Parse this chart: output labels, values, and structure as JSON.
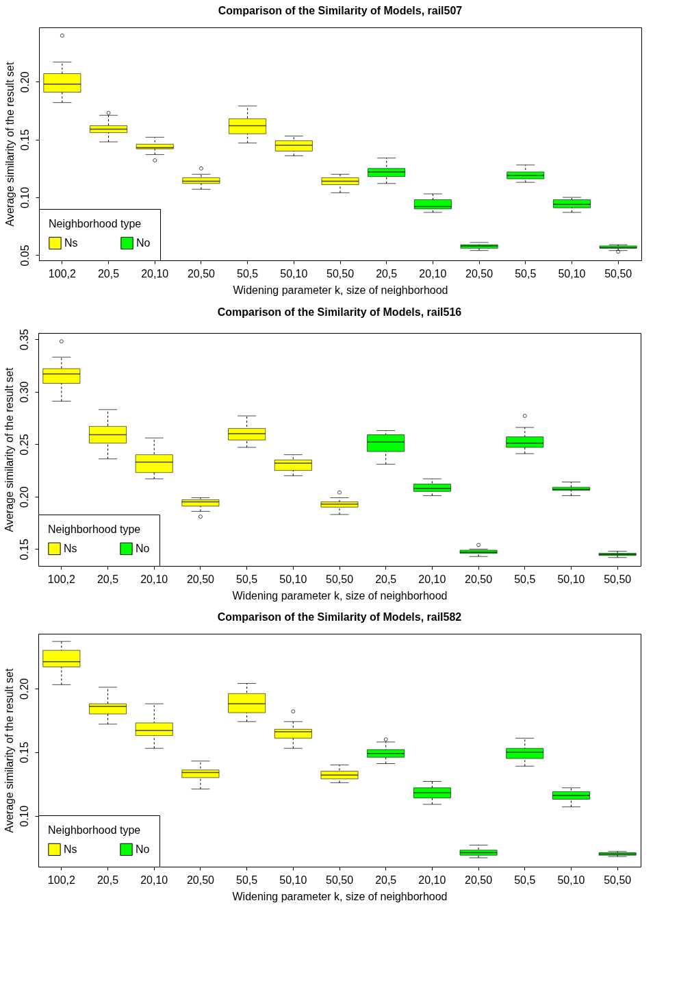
{
  "chart_data": [
    {
      "type": "box",
      "title": "Comparison of the Similarity of Models, rail507",
      "xlabel": "Widening parameter k, size of neighborhood",
      "ylabel": "Average similarity of the result set",
      "legend_title": "Neighborhood type",
      "legend": "bottom left",
      "grid": false,
      "categories": [
        "100,2",
        "20,5",
        "20,10",
        "20,50",
        "50,5",
        "50,10",
        "50,50",
        "20,5",
        "20,10",
        "20,50",
        "50,5",
        "50,10",
        "50,50"
      ],
      "ylim": [
        0.0455,
        0.247
      ],
      "yticks": [
        {
          "value": 0.05,
          "label": "0.05"
        },
        {
          "value": 0.1,
          "label": "0.10"
        },
        {
          "value": 0.15,
          "label": "0.15"
        },
        {
          "value": 0.2,
          "label": "0.20"
        }
      ],
      "series": [
        {
          "name": "Ns",
          "color": "#ffff00",
          "boxes": [
            {
              "low": 0.182,
              "q1": 0.191,
              "median": 0.198,
              "q3": 0.207,
              "high": 0.217,
              "outliers": [
                0.24
              ]
            },
            {
              "low": 0.148,
              "q1": 0.156,
              "median": 0.159,
              "q3": 0.162,
              "high": 0.171,
              "outliers": [
                0.173
              ]
            },
            {
              "low": 0.137,
              "q1": 0.142,
              "median": 0.143,
              "q3": 0.146,
              "high": 0.152,
              "outliers": [
                0.132
              ]
            },
            {
              "low": 0.107,
              "q1": 0.112,
              "median": 0.114,
              "q3": 0.117,
              "high": 0.12,
              "outliers": [
                0.125
              ]
            },
            {
              "low": 0.147,
              "q1": 0.155,
              "median": 0.162,
              "q3": 0.168,
              "high": 0.179
            },
            {
              "low": 0.136,
              "q1": 0.14,
              "median": 0.145,
              "q3": 0.149,
              "high": 0.153
            },
            {
              "low": 0.104,
              "q1": 0.111,
              "median": 0.114,
              "q3": 0.117,
              "high": 0.12
            },
            null,
            null,
            null,
            null,
            null,
            null
          ]
        },
        {
          "name": "No",
          "color": "#00ff00",
          "boxes": [
            null,
            null,
            null,
            null,
            null,
            null,
            null,
            {
              "low": 0.112,
              "q1": 0.118,
              "median": 0.122,
              "q3": 0.125,
              "high": 0.134
            },
            {
              "low": 0.087,
              "q1": 0.09,
              "median": 0.092,
              "q3": 0.098,
              "high": 0.103
            },
            {
              "low": 0.054,
              "q1": 0.056,
              "median": 0.058,
              "q3": 0.059,
              "high": 0.061
            },
            {
              "low": 0.113,
              "q1": 0.116,
              "median": 0.119,
              "q3": 0.122,
              "high": 0.128
            },
            {
              "low": 0.087,
              "q1": 0.091,
              "median": 0.094,
              "q3": 0.098,
              "high": 0.1
            },
            {
              "low": 0.054,
              "q1": 0.056,
              "median": 0.0565,
              "q3": 0.058,
              "high": 0.059,
              "outliers": [
                0.053
              ]
            }
          ]
        }
      ]
    },
    {
      "type": "box",
      "title": "Comparison of the Similarity of Models, rail516",
      "xlabel": "Widening parameter k, size of neighborhood",
      "ylabel": "Average similarity of the result set",
      "legend_title": "Neighborhood type",
      "legend": "bottom left",
      "grid": false,
      "categories": [
        "100,2",
        "20,5",
        "20,10",
        "20,50",
        "50,5",
        "50,10",
        "50,50",
        "20,5",
        "20,10",
        "20,50",
        "50,5",
        "50,10",
        "50,50"
      ],
      "ylim": [
        0.134,
        0.356
      ],
      "yticks": [
        {
          "value": 0.15,
          "label": "0.15"
        },
        {
          "value": 0.2,
          "label": "0.20"
        },
        {
          "value": 0.25,
          "label": "0.25"
        },
        {
          "value": 0.3,
          "label": "0.30"
        },
        {
          "value": 0.35,
          "label": "0.35"
        }
      ],
      "series": [
        {
          "name": "Ns",
          "color": "#ffff00",
          "boxes": [
            {
              "low": 0.291,
              "q1": 0.308,
              "median": 0.317,
              "q3": 0.322,
              "high": 0.333,
              "outliers": [
                0.348
              ]
            },
            {
              "low": 0.236,
              "q1": 0.251,
              "median": 0.259,
              "q3": 0.267,
              "high": 0.283
            },
            {
              "low": 0.217,
              "q1": 0.223,
              "median": 0.233,
              "q3": 0.24,
              "high": 0.256
            },
            {
              "low": 0.186,
              "q1": 0.191,
              "median": 0.195,
              "q3": 0.197,
              "high": 0.199,
              "outliers": [
                0.181
              ]
            },
            {
              "low": 0.247,
              "q1": 0.254,
              "median": 0.26,
              "q3": 0.265,
              "high": 0.277
            },
            {
              "low": 0.22,
              "q1": 0.225,
              "median": 0.232,
              "q3": 0.235,
              "high": 0.24
            },
            {
              "low": 0.183,
              "q1": 0.19,
              "median": 0.193,
              "q3": 0.195,
              "high": 0.199,
              "outliers": [
                0.204
              ]
            },
            null,
            null,
            null,
            null,
            null,
            null
          ]
        },
        {
          "name": "No",
          "color": "#00ff00",
          "boxes": [
            null,
            null,
            null,
            null,
            null,
            null,
            null,
            {
              "low": 0.231,
              "q1": 0.243,
              "median": 0.252,
              "q3": 0.259,
              "high": 0.263
            },
            {
              "low": 0.201,
              "q1": 0.205,
              "median": 0.208,
              "q3": 0.212,
              "high": 0.217
            },
            {
              "low": 0.143,
              "q1": 0.146,
              "median": 0.147,
              "q3": 0.149,
              "high": 0.15,
              "outliers": [
                0.154
              ]
            },
            {
              "low": 0.241,
              "q1": 0.247,
              "median": 0.251,
              "q3": 0.257,
              "high": 0.266,
              "outliers": [
                0.277
              ]
            },
            {
              "low": 0.201,
              "q1": 0.206,
              "median": 0.207,
              "q3": 0.209,
              "high": 0.214
            },
            {
              "low": 0.142,
              "q1": 0.144,
              "median": 0.145,
              "q3": 0.146,
              "high": 0.148
            }
          ]
        }
      ]
    },
    {
      "type": "box",
      "title": "Comparison of the Similarity of Models, rail582",
      "xlabel": "Widening parameter k, size of neighborhood",
      "ylabel": "Average similarity of the result set",
      "legend_title": "Neighborhood type",
      "legend": "bottom left",
      "grid": false,
      "categories": [
        "100,2",
        "20,5",
        "20,10",
        "20,50",
        "50,5",
        "50,10",
        "50,50",
        "20,5",
        "20,10",
        "20,50",
        "50,5",
        "50,10",
        "50,50"
      ],
      "ylim": [
        0.06,
        0.243
      ],
      "yticks": [
        {
          "value": 0.1,
          "label": "0.10"
        },
        {
          "value": 0.15,
          "label": "0.15"
        },
        {
          "value": 0.2,
          "label": "0.20"
        }
      ],
      "series": [
        {
          "name": "Ns",
          "color": "#ffff00",
          "boxes": [
            {
              "low": 0.203,
              "q1": 0.217,
              "median": 0.221,
              "q3": 0.23,
              "high": 0.237
            },
            {
              "low": 0.172,
              "q1": 0.18,
              "median": 0.186,
              "q3": 0.188,
              "high": 0.201
            },
            {
              "low": 0.153,
              "q1": 0.163,
              "median": 0.167,
              "q3": 0.173,
              "high": 0.188
            },
            {
              "low": 0.121,
              "q1": 0.13,
              "median": 0.134,
              "q3": 0.136,
              "high": 0.143
            },
            {
              "low": 0.174,
              "q1": 0.181,
              "median": 0.188,
              "q3": 0.196,
              "high": 0.204
            },
            {
              "low": 0.153,
              "q1": 0.161,
              "median": 0.166,
              "q3": 0.168,
              "high": 0.174,
              "outliers": [
                0.182
              ]
            },
            {
              "low": 0.126,
              "q1": 0.129,
              "median": 0.132,
              "q3": 0.135,
              "high": 0.14
            },
            null,
            null,
            null,
            null,
            null,
            null
          ]
        },
        {
          "name": "No",
          "color": "#00ff00",
          "boxes": [
            null,
            null,
            null,
            null,
            null,
            null,
            null,
            {
              "low": 0.141,
              "q1": 0.146,
              "median": 0.149,
              "q3": 0.152,
              "high": 0.158,
              "outliers": [
                0.16
              ]
            },
            {
              "low": 0.109,
              "q1": 0.114,
              "median": 0.118,
              "q3": 0.122,
              "high": 0.127
            },
            {
              "low": 0.067,
              "q1": 0.069,
              "median": 0.071,
              "q3": 0.073,
              "high": 0.077
            },
            {
              "low": 0.139,
              "q1": 0.145,
              "median": 0.15,
              "q3": 0.153,
              "high": 0.161
            },
            {
              "low": 0.107,
              "q1": 0.113,
              "median": 0.116,
              "q3": 0.119,
              "high": 0.122
            },
            {
              "low": 0.068,
              "q1": 0.069,
              "median": 0.07,
              "q3": 0.071,
              "high": 0.072
            }
          ]
        }
      ]
    }
  ]
}
